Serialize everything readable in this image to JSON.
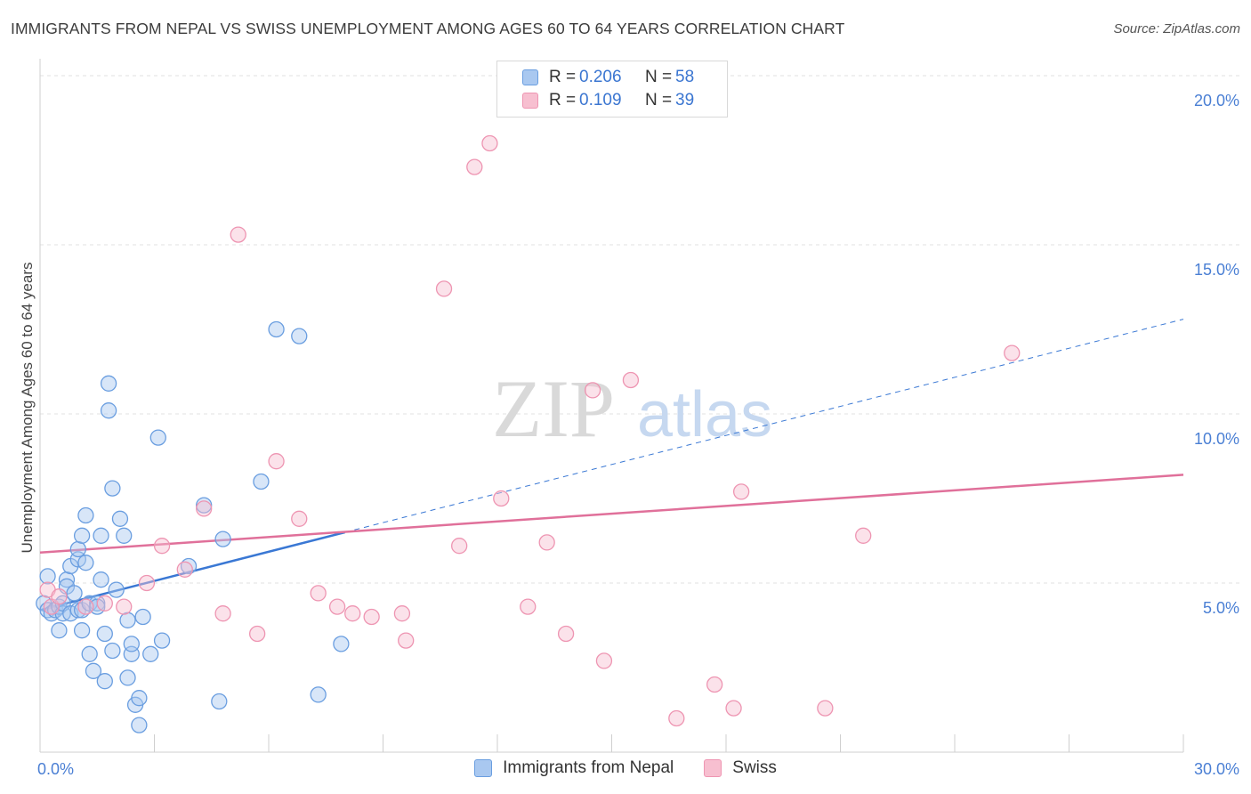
{
  "header": {
    "title": "IMMIGRANTS FROM NEPAL VS SWISS UNEMPLOYMENT AMONG AGES 60 TO 64 YEARS CORRELATION CHART",
    "source": "Source: ZipAtlas.com"
  },
  "watermark": {
    "zip": "ZIP",
    "atlas": "atlas"
  },
  "legend": {
    "rows": [
      {
        "r_label": "R =",
        "r_value": "0.206",
        "n_label": "N =",
        "n_value": "58"
      },
      {
        "r_label": "R =",
        "r_value": "0.109",
        "n_label": "N =",
        "n_value": "39"
      }
    ]
  },
  "bottom_legend": {
    "series1": "Immigrants from Nepal",
    "series2": "Swiss"
  },
  "colors": {
    "blue_fill": "#a9c8f0",
    "blue_stroke": "#6a9ee0",
    "blue_line": "#3a78d4",
    "pink_fill": "#f7bfd0",
    "pink_stroke": "#ee95b2",
    "pink_line": "#e0709a",
    "grid": "#e2e2e2",
    "tick_text": "#4a7fd4"
  },
  "chart_data": {
    "type": "scatter",
    "title": "IMMIGRANTS FROM NEPAL VS SWISS UNEMPLOYMENT AMONG AGES 60 TO 64 YEARS CORRELATION CHART",
    "xlabel": "",
    "ylabel": "Unemployment Among Ages 60 to 64 years",
    "xlim": [
      0,
      30
    ],
    "ylim": [
      0,
      20.5
    ],
    "x_tick_labels": [
      {
        "value": 0,
        "label": "0.0%"
      },
      {
        "value": 30,
        "label": "30.0%"
      }
    ],
    "y_ticks": [
      {
        "value": 5,
        "label": "5.0%"
      },
      {
        "value": 10,
        "label": "10.0%"
      },
      {
        "value": 15,
        "label": "15.0%"
      },
      {
        "value": 20,
        "label": "20.0%"
      }
    ],
    "series": [
      {
        "name": "Immigrants from Nepal",
        "color": "blue",
        "r": 0.206,
        "n": 58,
        "trend": {
          "x": [
            0,
            8
          ],
          "y": [
            4.2,
            6.5
          ],
          "dashed_to": [
            30,
            12.8
          ]
        },
        "points": [
          [
            0.1,
            4.4
          ],
          [
            0.2,
            5.2
          ],
          [
            0.2,
            4.2
          ],
          [
            0.3,
            4.1
          ],
          [
            0.4,
            4.2
          ],
          [
            0.5,
            3.6
          ],
          [
            0.5,
            4.3
          ],
          [
            0.6,
            4.1
          ],
          [
            0.6,
            4.4
          ],
          [
            0.7,
            5.1
          ],
          [
            0.7,
            4.9
          ],
          [
            0.8,
            5.5
          ],
          [
            0.8,
            4.1
          ],
          [
            0.9,
            4.7
          ],
          [
            1.0,
            5.7
          ],
          [
            1.0,
            6.0
          ],
          [
            1.0,
            4.2
          ],
          [
            1.1,
            6.4
          ],
          [
            1.1,
            4.2
          ],
          [
            1.1,
            3.6
          ],
          [
            1.2,
            7.0
          ],
          [
            1.2,
            5.6
          ],
          [
            1.3,
            4.4
          ],
          [
            1.3,
            2.9
          ],
          [
            1.4,
            2.4
          ],
          [
            1.5,
            4.4
          ],
          [
            1.5,
            4.3
          ],
          [
            1.6,
            5.1
          ],
          [
            1.6,
            6.4
          ],
          [
            1.7,
            3.5
          ],
          [
            1.7,
            2.1
          ],
          [
            1.8,
            10.9
          ],
          [
            1.8,
            10.1
          ],
          [
            1.9,
            7.8
          ],
          [
            1.9,
            3.0
          ],
          [
            2.0,
            4.8
          ],
          [
            2.1,
            6.9
          ],
          [
            2.2,
            6.4
          ],
          [
            2.3,
            3.9
          ],
          [
            2.3,
            2.2
          ],
          [
            2.4,
            2.9
          ],
          [
            2.4,
            3.2
          ],
          [
            2.5,
            1.4
          ],
          [
            2.6,
            0.8
          ],
          [
            2.6,
            1.6
          ],
          [
            2.7,
            4.0
          ],
          [
            2.9,
            2.9
          ],
          [
            3.1,
            9.3
          ],
          [
            3.2,
            3.3
          ],
          [
            3.9,
            5.5
          ],
          [
            4.3,
            7.3
          ],
          [
            4.7,
            1.5
          ],
          [
            4.8,
            6.3
          ],
          [
            5.8,
            8.0
          ],
          [
            6.2,
            12.5
          ],
          [
            6.8,
            12.3
          ],
          [
            7.3,
            1.7
          ],
          [
            7.9,
            3.2
          ]
        ]
      },
      {
        "name": "Swiss",
        "color": "pink",
        "r": 0.109,
        "n": 39,
        "trend": {
          "x": [
            0,
            30
          ],
          "y": [
            5.9,
            8.2
          ]
        },
        "points": [
          [
            0.2,
            4.8
          ],
          [
            0.3,
            4.3
          ],
          [
            0.5,
            4.6
          ],
          [
            1.2,
            4.3
          ],
          [
            1.7,
            4.4
          ],
          [
            2.2,
            4.3
          ],
          [
            2.8,
            5.0
          ],
          [
            3.2,
            6.1
          ],
          [
            3.8,
            5.4
          ],
          [
            4.3,
            7.2
          ],
          [
            4.8,
            4.1
          ],
          [
            5.2,
            15.3
          ],
          [
            5.7,
            3.5
          ],
          [
            6.2,
            8.6
          ],
          [
            6.8,
            6.9
          ],
          [
            7.3,
            4.7
          ],
          [
            7.8,
            4.3
          ],
          [
            8.2,
            4.1
          ],
          [
            8.7,
            4.0
          ],
          [
            9.5,
            4.1
          ],
          [
            9.6,
            3.3
          ],
          [
            10.6,
            13.7
          ],
          [
            11.0,
            6.1
          ],
          [
            11.4,
            17.3
          ],
          [
            11.8,
            18.0
          ],
          [
            12.1,
            7.5
          ],
          [
            12.8,
            4.3
          ],
          [
            13.3,
            6.2
          ],
          [
            13.8,
            3.5
          ],
          [
            14.5,
            10.7
          ],
          [
            14.8,
            2.7
          ],
          [
            15.5,
            11.0
          ],
          [
            16.7,
            1.0
          ],
          [
            17.7,
            2.0
          ],
          [
            18.2,
            1.3
          ],
          [
            18.4,
            7.7
          ],
          [
            20.6,
            1.3
          ],
          [
            21.6,
            6.4
          ],
          [
            25.5,
            11.8
          ]
        ]
      }
    ]
  }
}
